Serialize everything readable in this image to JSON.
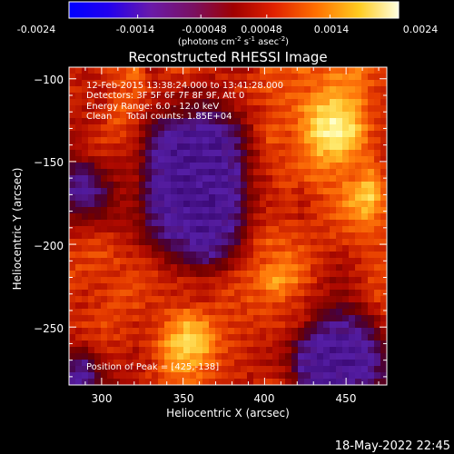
{
  "colorbar": {
    "ticks": [
      "-0.0024",
      "-0.0014",
      "-0.00048",
      "0.00048",
      "0.0014",
      "0.0024"
    ],
    "units_main": "(photons cm",
    "units_exp1": "-2",
    "units_mid": " s",
    "units_exp2": "-1",
    "units_tail": " asec",
    "units_exp3": "-2",
    "units_close": ")",
    "range": [
      -0.0024,
      0.0024
    ]
  },
  "annotations": {
    "time_range": "12-Feb-2015 13:38:24.000 to 13:41:28.000",
    "detectors": "Detectors: 3F 5F 6F 7F 8F 9F, Att 0",
    "energy": "Energy Range: 6.0 - 12.0 keV",
    "clean": "Clean     Total counts: 1.85E+04",
    "peak": "Position of Peak = [425,-138]"
  },
  "footer": {
    "date": "18-May-2022 22:45"
  },
  "chart_data": {
    "type": "heatmap",
    "title": "Reconstructed RHESSI Image",
    "xlabel": "Heliocentric X (arcsec)",
    "ylabel": "Heliocentric Y (arcsec)",
    "xlim": [
      280,
      475
    ],
    "ylim": [
      -285,
      -93
    ],
    "xticks": [
      300,
      350,
      400,
      450
    ],
    "yticks": [
      -100,
      -150,
      -200,
      -250
    ],
    "xtick_labels": [
      "300",
      "350",
      "400",
      "450"
    ],
    "ytick_labels": [
      "−100",
      "−150",
      "−200",
      "−250"
    ],
    "grid": false,
    "colormap": "blue-purple-red-yellow-white",
    "peak": [
      425,
      -138
    ],
    "intensity_grid": [
      [
        0.5,
        0.42,
        0.55,
        0.58,
        0.72,
        0.4,
        0.55,
        0.6,
        0.48,
        0.52,
        0.45,
        0.5,
        0.62,
        0.58,
        0.66,
        0.58,
        0.68,
        0.7,
        0.62,
        0.55
      ],
      [
        0.55,
        0.5,
        0.45,
        0.6,
        0.62,
        0.5,
        0.48,
        0.42,
        0.4,
        0.45,
        0.5,
        0.55,
        0.6,
        0.62,
        0.6,
        0.7,
        0.75,
        0.72,
        0.6,
        0.52
      ],
      [
        0.5,
        0.48,
        0.5,
        0.65,
        0.55,
        0.42,
        0.35,
        0.3,
        0.22,
        0.28,
        0.4,
        0.48,
        0.55,
        0.62,
        0.7,
        0.85,
        0.9,
        0.8,
        0.6,
        0.5
      ],
      [
        0.42,
        0.45,
        0.55,
        0.58,
        0.48,
        0.2,
        0.1,
        0.08,
        0.06,
        0.1,
        0.18,
        0.45,
        0.62,
        0.58,
        0.7,
        0.95,
        1.0,
        0.88,
        0.62,
        0.5
      ],
      [
        0.4,
        0.48,
        0.52,
        0.5,
        0.45,
        0.15,
        0.06,
        0.05,
        0.05,
        0.06,
        0.15,
        0.4,
        0.58,
        0.55,
        0.66,
        0.8,
        0.85,
        0.75,
        0.58,
        0.48
      ],
      [
        0.18,
        0.14,
        0.3,
        0.42,
        0.4,
        0.12,
        0.05,
        0.04,
        0.05,
        0.05,
        0.12,
        0.42,
        0.5,
        0.6,
        0.62,
        0.68,
        0.65,
        0.62,
        0.72,
        0.55
      ],
      [
        0.12,
        0.08,
        0.2,
        0.4,
        0.38,
        0.1,
        0.06,
        0.05,
        0.04,
        0.05,
        0.1,
        0.38,
        0.48,
        0.55,
        0.5,
        0.58,
        0.66,
        0.78,
        0.92,
        0.62
      ],
      [
        0.35,
        0.3,
        0.35,
        0.42,
        0.4,
        0.14,
        0.08,
        0.05,
        0.05,
        0.06,
        0.14,
        0.42,
        0.5,
        0.52,
        0.48,
        0.55,
        0.62,
        0.72,
        0.75,
        0.6
      ],
      [
        0.48,
        0.52,
        0.55,
        0.48,
        0.42,
        0.25,
        0.12,
        0.08,
        0.06,
        0.08,
        0.2,
        0.5,
        0.62,
        0.58,
        0.55,
        0.52,
        0.55,
        0.58,
        0.6,
        0.55
      ],
      [
        0.55,
        0.58,
        0.6,
        0.55,
        0.52,
        0.45,
        0.35,
        0.22,
        0.15,
        0.2,
        0.4,
        0.55,
        0.6,
        0.68,
        0.62,
        0.55,
        0.45,
        0.48,
        0.58,
        0.6
      ],
      [
        0.58,
        0.55,
        0.52,
        0.55,
        0.58,
        0.55,
        0.5,
        0.48,
        0.45,
        0.5,
        0.55,
        0.6,
        0.78,
        0.75,
        0.62,
        0.48,
        0.4,
        0.45,
        0.55,
        0.6
      ],
      [
        0.52,
        0.5,
        0.55,
        0.6,
        0.58,
        0.55,
        0.52,
        0.5,
        0.48,
        0.55,
        0.58,
        0.6,
        0.62,
        0.58,
        0.5,
        0.42,
        0.35,
        0.4,
        0.52,
        0.58
      ],
      [
        0.5,
        0.55,
        0.58,
        0.55,
        0.52,
        0.5,
        0.65,
        0.78,
        0.72,
        0.58,
        0.55,
        0.52,
        0.55,
        0.52,
        0.48,
        0.2,
        0.15,
        0.18,
        0.3,
        0.5
      ],
      [
        0.45,
        0.48,
        0.55,
        0.52,
        0.48,
        0.55,
        0.8,
        0.92,
        0.85,
        0.62,
        0.55,
        0.5,
        0.48,
        0.42,
        0.15,
        0.08,
        0.06,
        0.08,
        0.12,
        0.35
      ],
      [
        0.2,
        0.15,
        0.4,
        0.48,
        0.45,
        0.52,
        0.72,
        0.78,
        0.7,
        0.58,
        0.52,
        0.48,
        0.45,
        0.38,
        0.1,
        0.05,
        0.05,
        0.06,
        0.08,
        0.25
      ],
      [
        0.1,
        0.08,
        0.3,
        0.42,
        0.5,
        0.55,
        0.58,
        0.62,
        0.58,
        0.55,
        0.5,
        0.48,
        0.55,
        0.45,
        0.18,
        0.08,
        0.1,
        0.12,
        0.15,
        0.3
      ]
    ]
  }
}
